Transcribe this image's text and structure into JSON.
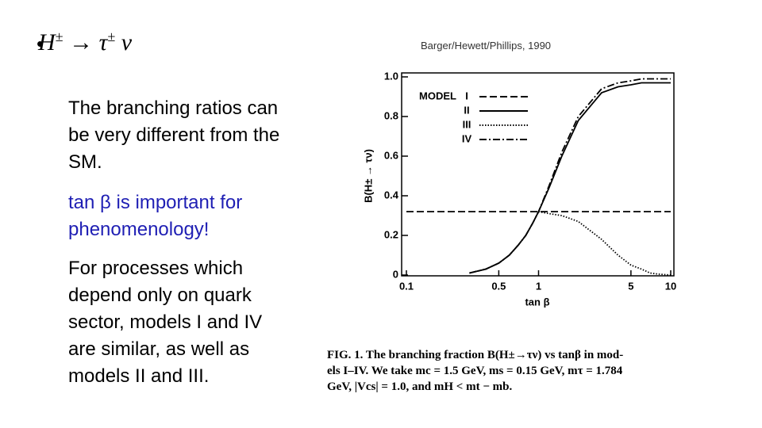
{
  "slide": {
    "title": [
      "H",
      "±",
      "→ τ",
      "±",
      "ν"
    ],
    "citation": "Barger/Hewett/Phillips, 1990",
    "paragraphs": [
      {
        "text": "The branching ratios can be very different from the SM.",
        "color": "#000000"
      },
      {
        "text": "tan β is important for phenomenology!",
        "color": "#1f1fb4"
      },
      {
        "text": "For processes which depend only on quark sector, models I and IV are similar, as well as models II and III.",
        "color": "#000000"
      }
    ],
    "caption": [
      "FIG. 1.  The branching fraction B(H±→τν) vs tanβ in mod-",
      "els I–IV.  We take mc = 1.5 GeV, ms = 0.15 GeV, mτ = 1.784",
      "GeV, |Vcs| = 1.0, and mH < mt − mb."
    ]
  },
  "chart_data": {
    "type": "line",
    "xlabel": "tan β",
    "ylabel": "B(H± → τν)",
    "legend_title": "MODEL",
    "log_x": true,
    "xlim": [
      0.1,
      10
    ],
    "xticks": [
      0.1,
      0.5,
      1,
      5,
      10
    ],
    "ylim": [
      0,
      1
    ],
    "yticks": [
      0,
      0.2,
      0.4,
      0.6,
      0.8,
      {
        "value": 1,
        "label": "1.0"
      }
    ],
    "x": [
      0.1,
      0.2,
      0.3,
      0.4,
      0.5,
      0.6,
      0.7,
      0.8,
      0.9,
      1,
      1.2,
      1.5,
      2,
      3,
      4,
      5,
      6,
      7,
      8,
      10
    ],
    "series": [
      {
        "name": "I",
        "color": "#000000",
        "line_style": "dashed",
        "values": [
          0.32,
          0.32,
          0.32,
          0.32,
          0.32,
          0.32,
          0.32,
          0.32,
          0.32,
          0.32,
          0.32,
          0.32,
          0.32,
          0.32,
          0.32,
          0.32,
          0.32,
          0.32,
          0.32,
          0.32
        ]
      },
      {
        "name": "II",
        "color": "#000000",
        "line_style": "solid",
        "values": [
          null,
          null,
          0.01,
          0.03,
          0.06,
          0.1,
          0.15,
          0.2,
          0.26,
          0.32,
          0.44,
          0.6,
          0.78,
          0.92,
          0.95,
          0.96,
          0.97,
          0.97,
          0.97,
          0.97
        ]
      },
      {
        "name": "III",
        "color": "#000000",
        "line_style": "dotted",
        "values": [
          null,
          null,
          0.01,
          0.03,
          0.06,
          0.1,
          0.15,
          0.2,
          0.26,
          0.32,
          0.31,
          0.3,
          0.27,
          0.18,
          0.1,
          0.05,
          0.03,
          0.01,
          0.005,
          0
        ]
      },
      {
        "name": "IV",
        "color": "#000000",
        "line_style": "dashdot",
        "values": [
          null,
          null,
          0.01,
          0.03,
          0.06,
          0.1,
          0.15,
          0.2,
          0.26,
          0.32,
          0.45,
          0.62,
          0.8,
          0.94,
          0.97,
          0.98,
          0.99,
          0.99,
          0.99,
          0.99
        ]
      }
    ]
  }
}
